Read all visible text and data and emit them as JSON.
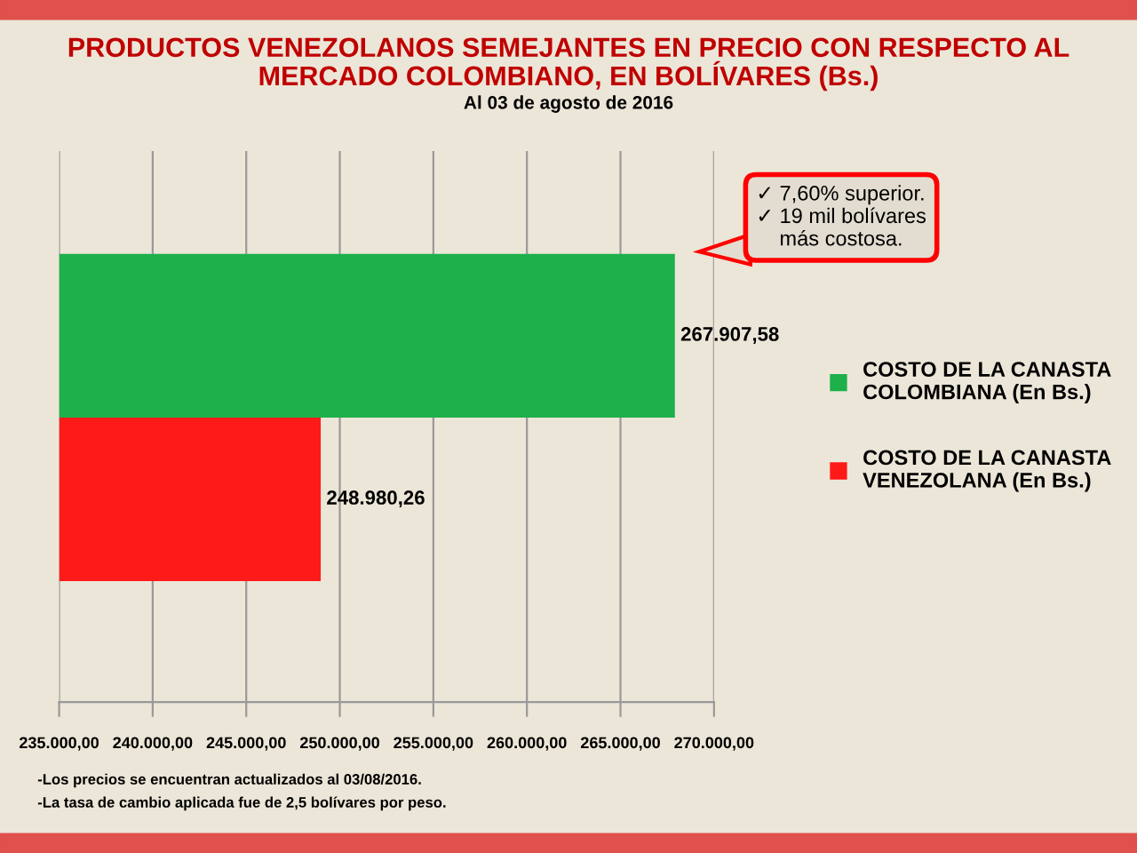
{
  "chart_data": {
    "type": "bar",
    "orientation": "horizontal",
    "title": "PRODUCTOS VENEZOLANOS SEMEJANTES EN PRECIO CON RESPECTO AL\nMERCADO COLOMBIANO, EN BOLÍVARES (Bs.)",
    "subtitle": "Al 03 de agosto de 2016",
    "categories": [
      null,
      null
    ],
    "series": [
      {
        "name": "COSTO DE LA CANASTA\nCOLOMBIANA (En Bs.)",
        "color": "#1db04b",
        "values": [
          267907.58,
          null
        ],
        "value_labels": [
          "267.907,58",
          null
        ]
      },
      {
        "name": "COSTO DE LA CANASTA\nVENEZOLANA (En Bs.)",
        "color": "#ff1a1a",
        "values": [
          null,
          248980.26
        ],
        "value_labels": [
          null,
          "248.980,26"
        ]
      }
    ],
    "xlim": [
      235000,
      270000
    ],
    "xticks": [
      {
        "value": 235000,
        "label": "235.000,00"
      },
      {
        "value": 240000,
        "label": "240.000,00"
      },
      {
        "value": 245000,
        "label": "245.000,00"
      },
      {
        "value": 250000,
        "label": "250.000,00"
      },
      {
        "value": 255000,
        "label": "255.000,00"
      },
      {
        "value": 260000,
        "label": "260.000,00"
      },
      {
        "value": 265000,
        "label": "265.000,00"
      },
      {
        "value": 270000,
        "label": "270.000,00"
      }
    ],
    "grid": "x",
    "legend": "right",
    "annotations": [
      "✓ 7,60% superior.\n✓ 19 mil bolívares\n    más costosa.",
      "-Los precios se encuentran actualizados al 03/08/2016.",
      "-La tasa de cambio aplicada fue de 2,5 bolívares por peso."
    ]
  }
}
